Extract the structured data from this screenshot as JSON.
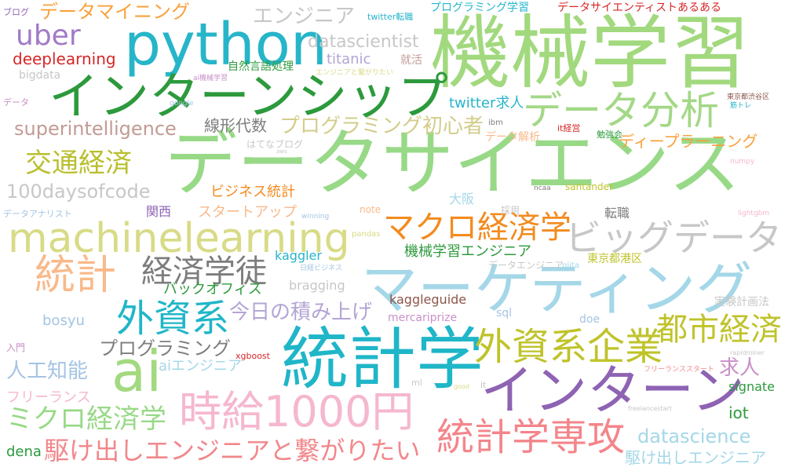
{
  "words": [
    {
      "text": "機械学習",
      "color": "#a2d97e"
    },
    {
      "text": "データサイエンス",
      "color": "#98d987"
    },
    {
      "text": "python",
      "color": "#26b5c9"
    },
    {
      "text": "インターンシップ",
      "color": "#2c9a3c"
    },
    {
      "text": "統計学",
      "color": "#1fb6c8"
    },
    {
      "text": "マーケティング",
      "color": "#a4d7e8"
    },
    {
      "text": "machinelearning",
      "color": "#d8db86"
    },
    {
      "text": "インターン",
      "color": "#8e63b3"
    },
    {
      "text": "時給1000円",
      "color": "#f5b7cf"
    },
    {
      "text": "データ分析",
      "color": "#a3d886"
    },
    {
      "text": "ビッグデータ",
      "color": "#c7c7c7"
    },
    {
      "text": "外資系企業",
      "color": "#bfc32a"
    },
    {
      "text": "ai",
      "color": "#a3d97f"
    },
    {
      "text": "統計",
      "color": "#f9b98a"
    },
    {
      "text": "マクロ経済学",
      "color": "#f38b1f"
    },
    {
      "text": "外資系",
      "color": "#1fb6c8"
    },
    {
      "text": "都市経済",
      "color": "#bfc32a"
    },
    {
      "text": "統計学専攻",
      "color": "#f4858a"
    },
    {
      "text": "経済学徒",
      "color": "#7d7d7d"
    },
    {
      "text": "交通経済",
      "color": "#b9bf2e"
    },
    {
      "text": "ミクロ経済学",
      "color": "#98d987"
    },
    {
      "text": "駆け出しエンジニアと繋がりたい",
      "color": "#f2878b"
    },
    {
      "text": "uber",
      "color": "#a27ac8"
    },
    {
      "text": "エンジニア",
      "color": "#c7c7c7"
    },
    {
      "text": "superintelligence",
      "color": "#c29b94"
    },
    {
      "text": "100daysofcode",
      "color": "#c7c7c7"
    },
    {
      "text": "プログラミング初心者",
      "color": "#d2cd8a"
    },
    {
      "text": "datascientist",
      "color": "#c7c7c7"
    },
    {
      "text": "データマイニング",
      "color": "#f9a13c"
    },
    {
      "text": "deeplearning",
      "color": "#d62728"
    },
    {
      "text": "プログラミング",
      "color": "#7d7d7d"
    },
    {
      "text": "datascience",
      "color": "#a4d7e8"
    },
    {
      "text": "今日の積み上げ",
      "color": "#b3a4d4"
    },
    {
      "text": "人工知能",
      "color": "#a4c4e3"
    },
    {
      "text": "求人",
      "color": "#c98fc8"
    },
    {
      "text": "ディープラーニング",
      "color": "#f9a13c"
    },
    {
      "text": "線形代数",
      "color": "#7d7d7d"
    },
    {
      "text": "titanic",
      "color": "#b3a4d4"
    },
    {
      "text": "twitter求人",
      "color": "#26b5c9"
    },
    {
      "text": "ビジネス統計",
      "color": "#f38b1f"
    },
    {
      "text": "スタートアップ",
      "color": "#f9b98a"
    },
    {
      "text": "機械学習エンジニア",
      "color": "#2c9a3c"
    },
    {
      "text": "バックオフィス",
      "color": "#2c9a3c"
    },
    {
      "text": "kaggler",
      "color": "#26b5c9"
    },
    {
      "text": "駆け出しエンジニア",
      "color": "#a4d7e8"
    },
    {
      "text": "bosyu",
      "color": "#a4c4e3"
    },
    {
      "text": "aiエンジニア",
      "color": "#a4d7e8"
    },
    {
      "text": "フリーランス",
      "color": "#f5b7cf"
    },
    {
      "text": "dena",
      "color": "#2c9a3c"
    },
    {
      "text": "iot",
      "color": "#2c9a3c"
    },
    {
      "text": "signate",
      "color": "#2c9a3c"
    },
    {
      "text": "大阪",
      "color": "#a4d7e8"
    },
    {
      "text": "関西",
      "color": "#8e63b3"
    },
    {
      "text": "転職",
      "color": "#7d7d7d"
    },
    {
      "text": "東京都港区",
      "color": "#bfc32a"
    },
    {
      "text": "kaggleguide",
      "color": "#8c564b"
    },
    {
      "text": "bragging",
      "color": "#c7c7c7"
    },
    {
      "text": "sql",
      "color": "#a4c4e3"
    },
    {
      "text": "doe",
      "color": "#a4c4e3"
    },
    {
      "text": "実験計画法",
      "color": "#c7c7c7"
    },
    {
      "text": "データ解析",
      "color": "#f9b98a"
    },
    {
      "text": "プログラミング学習",
      "color": "#26b5c9"
    },
    {
      "text": "データサイエンティストあるある",
      "color": "#d62728"
    },
    {
      "text": "自然言語処理",
      "color": "#2c9a3c"
    },
    {
      "text": "就活",
      "color": "#c29b94"
    },
    {
      "text": "mercariprize",
      "color": "#c98fc8"
    },
    {
      "text": "bigdata",
      "color": "#c7c7c7"
    },
    {
      "text": "twitter転職",
      "color": "#26b5c9"
    },
    {
      "text": "ブログ",
      "color": "#8e63b3"
    },
    {
      "text": "santander",
      "color": "#bfc32a"
    },
    {
      "text": "note",
      "color": "#f9b98a"
    },
    {
      "text": "採用",
      "color": "#c7c7c7"
    },
    {
      "text": "はてなブログ",
      "color": "#c7c7c7"
    },
    {
      "text": "データエンジニア",
      "color": "#c7c7c7"
    },
    {
      "text": "it経営",
      "color": "#d62728"
    },
    {
      "text": "勉強会",
      "color": "#2c9a3c"
    },
    {
      "text": "ibm",
      "color": "#7d7d7d"
    },
    {
      "text": "qiita",
      "color": "#a4d7e8"
    },
    {
      "text": "xgboost",
      "color": "#d62728"
    },
    {
      "text": "入門",
      "color": "#c98fc8"
    },
    {
      "text": "データ",
      "color": "#c98fc8"
    },
    {
      "text": "データアナリスト",
      "color": "#a4c4e3"
    },
    {
      "text": "ai機械学習",
      "color": "#c98fc8"
    },
    {
      "text": "エンジニアと繋がりたい",
      "color": "#d8db86"
    },
    {
      "text": "google",
      "color": "#a4c4e3"
    },
    {
      "text": "日経ビジネス",
      "color": "#a4c4e3"
    },
    {
      "text": "pandas",
      "color": "#d8db86"
    },
    {
      "text": "winning",
      "color": "#a4c4e3"
    },
    {
      "text": "ncaa",
      "color": "#7d7d7d"
    },
    {
      "text": "numpy",
      "color": "#f5b7cf"
    },
    {
      "text": "lightgbm",
      "color": "#f5b7cf"
    },
    {
      "text": "rapidminer",
      "color": "#c7c7c7"
    },
    {
      "text": "フリーランススタート",
      "color": "#f2878b"
    },
    {
      "text": "freelancestart",
      "color": "#c7c7c7"
    },
    {
      "text": "it",
      "color": "#c7c7c7"
    },
    {
      "text": "ml",
      "color": "#c7c7c7"
    },
    {
      "text": "good",
      "color": "#d8db86"
    },
    {
      "text": "東京都渋谷区",
      "color": "#8c564b"
    },
    {
      "text": "筋トレ",
      "color": "#26b5c9"
    },
    {
      "text": "aws",
      "color": "#c7c7c7"
    }
  ]
}
